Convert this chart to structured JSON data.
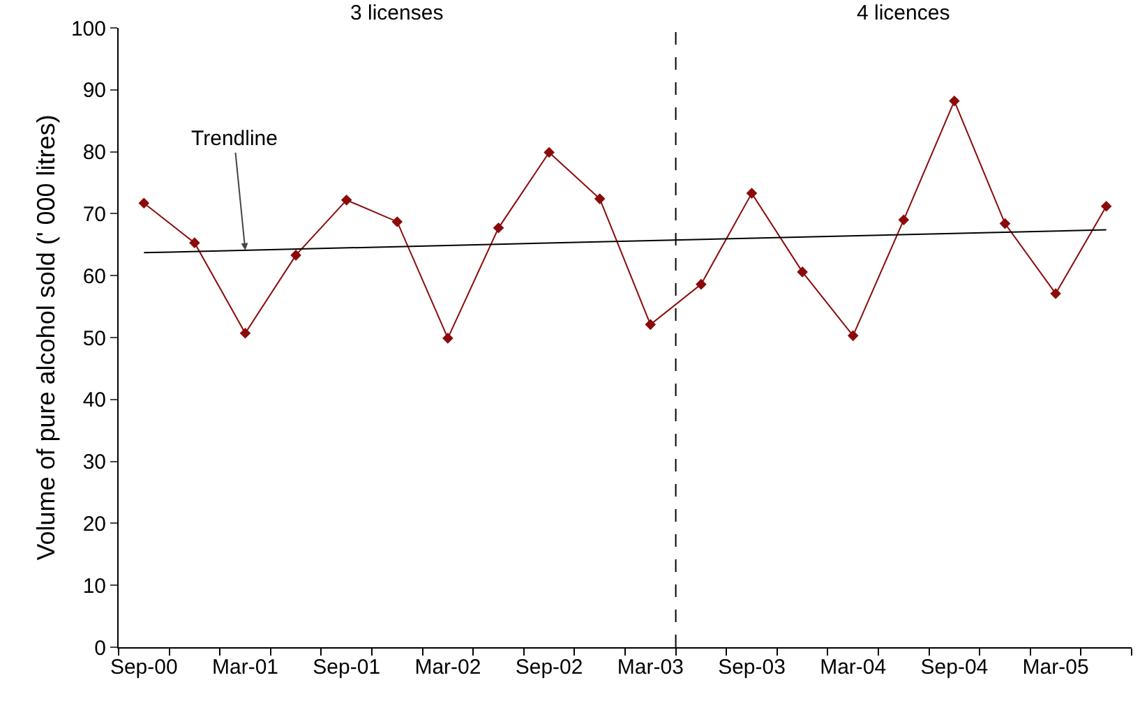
{
  "chart_data": {
    "type": "line",
    "ylabel": "Volume of pure alcohol sold (' 000 litres)",
    "categories": [
      "Sep-00",
      null,
      "Mar-01",
      null,
      "Sep-01",
      null,
      "Mar-02",
      null,
      "Sep-02",
      null,
      "Mar-03",
      null,
      "Sep-03",
      null,
      "Mar-04",
      null,
      "Sep-04",
      null,
      "Mar-05",
      null
    ],
    "series": [
      {
        "color": "#8b0a0a",
        "marker": "diamond",
        "values": [
          71.7,
          65.3,
          50.7,
          63.3,
          72.2,
          68.7,
          49.9,
          67.7,
          79.9,
          72.4,
          52.1,
          58.6,
          73.3,
          60.6,
          50.3,
          69.0,
          88.2,
          68.4,
          57.1,
          71.2
        ]
      },
      {
        "type": "line",
        "color": "#000000",
        "marker": "none",
        "values": [
          63.7,
          null,
          null,
          null,
          null,
          null,
          null,
          null,
          null,
          null,
          null,
          null,
          null,
          null,
          null,
          null,
          null,
          null,
          null,
          67.4
        ]
      }
    ],
    "ylim": [
      0,
      100
    ],
    "yticks": [
      0,
      10,
      20,
      30,
      40,
      50,
      60,
      70,
      80,
      90,
      100
    ],
    "grid": false,
    "annotations": [
      "3 licenses",
      "4 licences",
      {
        "text": "Trendline",
        "x": "Mar-01",
        "y": 64.1
      }
    ]
  }
}
